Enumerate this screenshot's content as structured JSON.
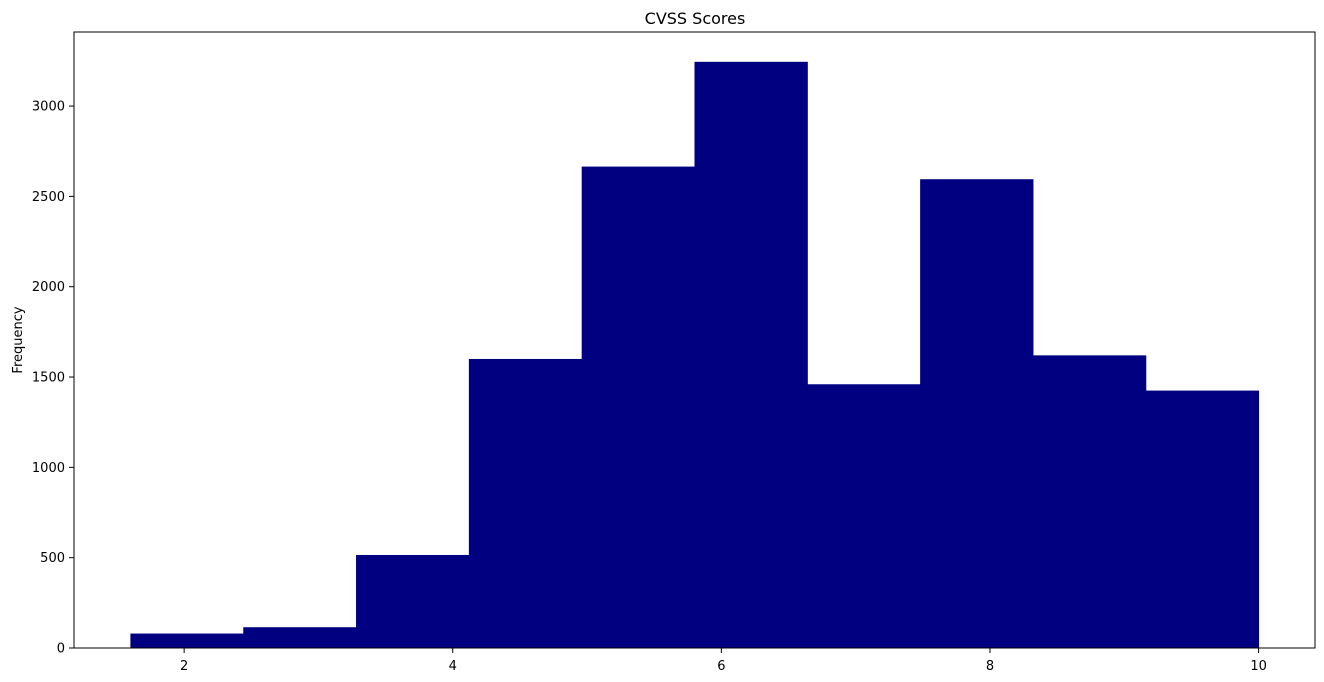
{
  "chart_data": {
    "type": "bar",
    "title": "CVSS Scores",
    "xlabel": "",
    "ylabel": "Frequency",
    "bin_edges": [
      1.6,
      2.44,
      3.28,
      4.12,
      4.96,
      5.8,
      6.64,
      7.48,
      8.32,
      9.16,
      10.0
    ],
    "values": [
      80,
      115,
      515,
      1600,
      2665,
      3245,
      1460,
      2595,
      1620,
      1425
    ],
    "xlim": [
      1.18,
      10.42
    ],
    "ylim": [
      0,
      3410
    ],
    "xticks": [
      2,
      4,
      6,
      8,
      10
    ],
    "yticks": [
      0,
      500,
      1000,
      1500,
      2000,
      2500,
      3000
    ],
    "bar_color": "#000080",
    "grid": false,
    "legend": "none"
  }
}
